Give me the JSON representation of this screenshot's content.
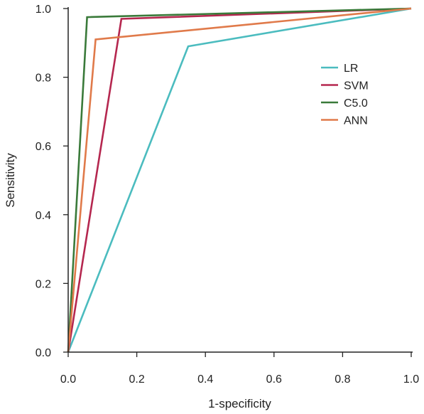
{
  "chart_data": {
    "type": "line",
    "title": "",
    "xlabel": "1-specificity",
    "ylabel": "Sensitivity",
    "xlim": [
      0,
      1
    ],
    "ylim": [
      0,
      1
    ],
    "xticks": [
      "0.0",
      "0.2",
      "0.4",
      "0.6",
      "0.8",
      "1.0"
    ],
    "yticks": [
      "0.0",
      "0.2",
      "0.4",
      "0.6",
      "0.8",
      "1.0"
    ],
    "grid": false,
    "legend_position": "right",
    "series": [
      {
        "name": "LR",
        "color": "#4bbcbf",
        "x": [
          0,
          0.35,
          1
        ],
        "y": [
          0,
          0.89,
          1
        ]
      },
      {
        "name": "SVM",
        "color": "#b5274f",
        "x": [
          0,
          0.155,
          1
        ],
        "y": [
          0,
          0.97,
          1
        ]
      },
      {
        "name": "C5.0",
        "color": "#3a7a3a",
        "x": [
          0,
          0.055,
          1
        ],
        "y": [
          0,
          0.975,
          1
        ]
      },
      {
        "name": "ANN",
        "color": "#e07a4a",
        "x": [
          0,
          0.08,
          1
        ],
        "y": [
          0,
          0.91,
          1
        ]
      }
    ]
  }
}
